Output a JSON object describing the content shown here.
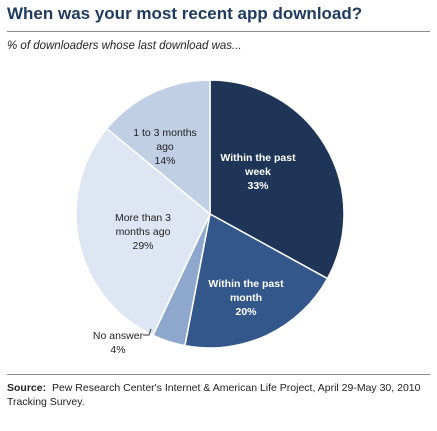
{
  "chart_data": {
    "type": "pie",
    "title": "When was your most recent app download?",
    "subtitle": "% of downloaders whose last download was...",
    "start_at": "top",
    "direction": "clockwise",
    "slices": [
      {
        "label": "Within the past week",
        "value": 33,
        "value_label": "33%",
        "color": "#1e3557",
        "text_color": "#ffffff"
      },
      {
        "label": "Within the past month",
        "value": 20,
        "value_label": "20%",
        "color": "#33578a",
        "text_color": "#ffffff"
      },
      {
        "label": "No answer",
        "value": 4,
        "value_label": "4%",
        "color": "#8ea8cd",
        "text_color": "#1f1f1f"
      },
      {
        "label": "More than 3 months ago",
        "value": 29,
        "value_label": "29%",
        "color": "#dde6f2",
        "text_color": "#1f1f1f"
      },
      {
        "label": "1 to 3 months ago",
        "value": 14,
        "value_label": "14%",
        "color": "#c0cfe4",
        "text_color": "#1f1f1f"
      }
    ]
  },
  "source": {
    "prefix": "Source:",
    "text": "Pew Research Center's Internet & American Life Project, April 29-May 30, 2010 Tracking Survey."
  }
}
